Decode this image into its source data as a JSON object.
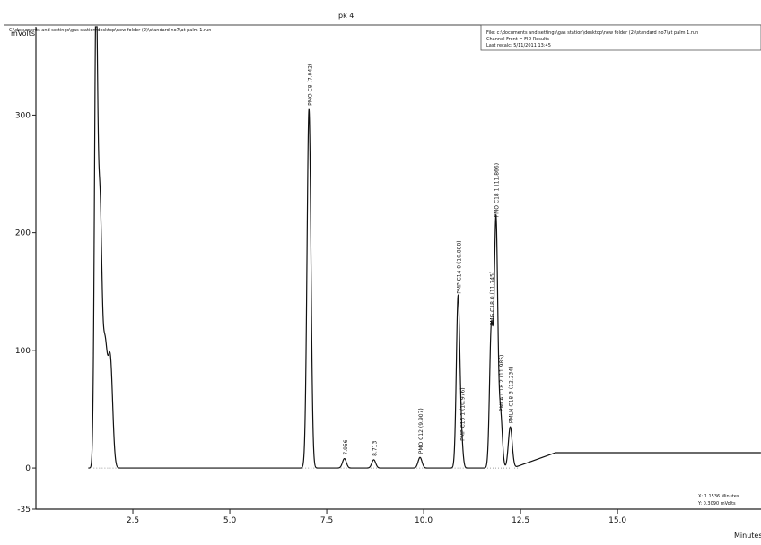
{
  "header": {
    "left_file": "C:\\documents and settings\\gas station\\desktop\\new folder (2)\\standard no7\\at palm 1.run",
    "channel_text": "File: c:\\documents and settings\\gas station\\desktop\\new folder (2)\\standard no7\\at palm 1.run",
    "channel_line2": "Channel Front = FID  Results",
    "last_recalc": "Last recalc: 5/11/2011 13:45",
    "top_mark": "pk 4"
  },
  "chart_data": {
    "type": "line",
    "title": "",
    "xlabel": "Minutes",
    "ylabel": "mVolts",
    "xlim": [
      0,
      18.7
    ],
    "ylim": [
      -35,
      375
    ],
    "x_ticks": [
      {
        "value": 2.5,
        "label": "2.5"
      },
      {
        "value": 5.0,
        "label": "5.0"
      },
      {
        "value": 7.5,
        "label": "7.5"
      },
      {
        "value": 10.0,
        "label": "10.0"
      },
      {
        "value": 12.5,
        "label": "12.5"
      },
      {
        "value": 15.0,
        "label": "15.0"
      }
    ],
    "y_ticks": [
      {
        "value": -35,
        "label": "-35"
      },
      {
        "value": 0,
        "label": "0"
      },
      {
        "value": 100,
        "label": "100"
      },
      {
        "value": 200,
        "label": "200"
      },
      {
        "value": 300,
        "label": "300"
      }
    ],
    "peaks": [
      {
        "x": 1.55,
        "height": 380,
        "width": 0.04,
        "label": ""
      },
      {
        "x": 1.65,
        "height": 215,
        "width": 0.05,
        "label": ""
      },
      {
        "x": 1.78,
        "height": 100,
        "width": 0.06,
        "label": ""
      },
      {
        "x": 1.92,
        "height": 90,
        "width": 0.06,
        "label": ""
      },
      {
        "x": 7.042,
        "height": 305,
        "width": 0.05,
        "label": "PMO C8 (7.042)"
      },
      {
        "x": 7.956,
        "height": 8,
        "width": 0.05,
        "label": "7.956"
      },
      {
        "x": 8.713,
        "height": 7,
        "width": 0.05,
        "label": "8.713"
      },
      {
        "x": 9.907,
        "height": 9,
        "width": 0.05,
        "label": "PMO C12 (9.907)"
      },
      {
        "x": 10.888,
        "height": 145,
        "width": 0.045,
        "label": "PMP C14 0 (10.888)"
      },
      {
        "x": 10.976,
        "height": 20,
        "width": 0.04,
        "label": "PMP C16 1 (10.976)"
      },
      {
        "x": 11.745,
        "height": 118,
        "width": 0.045,
        "label": "PMG C18 0 (11.745)"
      },
      {
        "x": 11.866,
        "height": 210,
        "width": 0.045,
        "label": "PMO C18 1 (11.866)"
      },
      {
        "x": 11.985,
        "height": 45,
        "width": 0.045,
        "label": "PMLA C18 2 (11.985)"
      },
      {
        "x": 12.234,
        "height": 35,
        "width": 0.05,
        "label": "PMLN C18 3 (12.234)"
      }
    ],
    "baseline_rise": {
      "start": 12.3,
      "end": 13.4,
      "level": 13
    },
    "cursor": {
      "x_text": "X: 1.1536 Minutes",
      "y_text": "Y: 0.3090 mVolts"
    }
  }
}
